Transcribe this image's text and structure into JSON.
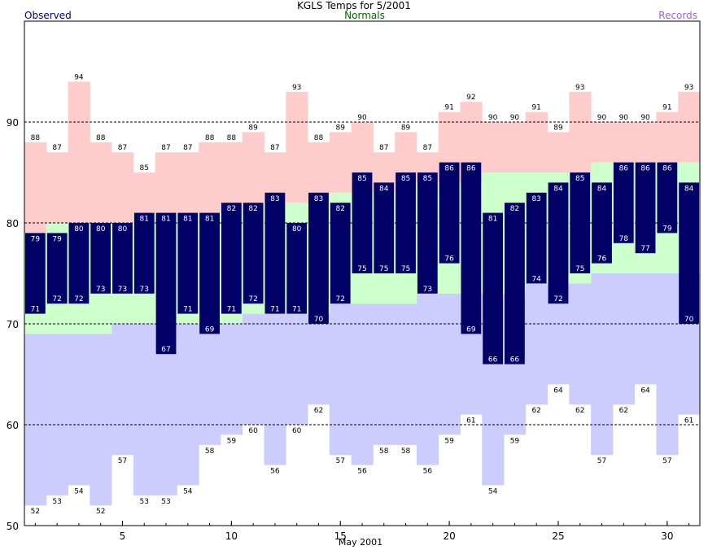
{
  "colors": {
    "observed": "#000066",
    "normals": "#006600",
    "records": "#9966cc",
    "record_high_fill": "#ffcccc",
    "record_low_fill": "#ccccff",
    "normal_fill": "#ccffcc",
    "observed_fill": "#000066"
  },
  "legend": {
    "observed": "Observed",
    "normals": "Normals",
    "records": "Records"
  },
  "chart_data": {
    "type": "bar",
    "title": "KGLS Temps for 5/2001",
    "xlabel": "May 2001",
    "ylabel": "",
    "days": [
      1,
      2,
      3,
      4,
      5,
      6,
      7,
      8,
      9,
      10,
      11,
      12,
      13,
      14,
      15,
      16,
      17,
      18,
      19,
      20,
      21,
      22,
      23,
      24,
      25,
      26,
      27,
      28,
      29,
      30,
      31
    ],
    "x_ticks": [
      5,
      10,
      15,
      20,
      25,
      30
    ],
    "y_ticks": [
      50,
      60,
      70,
      80,
      90
    ],
    "ylim": [
      50,
      100
    ],
    "grid_lines": [
      60,
      70,
      80,
      90
    ],
    "grid": true,
    "legend_placement": "top",
    "series": [
      {
        "name": "Observed",
        "role": "observed_high",
        "values": [
          79,
          79,
          80,
          80,
          80,
          81,
          81,
          81,
          81,
          82,
          82,
          83,
          80,
          83,
          82,
          85,
          84,
          85,
          85,
          86,
          86,
          81,
          82,
          83,
          84,
          85,
          84,
          86,
          86,
          86,
          84
        ]
      },
      {
        "name": "Observed",
        "role": "observed_low",
        "values": [
          71,
          72,
          72,
          73,
          73,
          73,
          67,
          71,
          69,
          71,
          72,
          71,
          71,
          70,
          72,
          75,
          75,
          75,
          73,
          76,
          69,
          66,
          66,
          74,
          72,
          75,
          76,
          78,
          77,
          79,
          70
        ]
      },
      {
        "name": "Normals",
        "role": "normal_high",
        "values": [
          79,
          80,
          80,
          80,
          80,
          81,
          81,
          81,
          81,
          81,
          82,
          82,
          82,
          82,
          83,
          83,
          83,
          84,
          84,
          84,
          84,
          85,
          85,
          85,
          85,
          85,
          86,
          86,
          86,
          86,
          86
        ]
      },
      {
        "name": "Normals",
        "role": "normal_low",
        "values": [
          69,
          69,
          69,
          69,
          70,
          70,
          70,
          70,
          70,
          70,
          71,
          71,
          71,
          71,
          72,
          72,
          72,
          72,
          73,
          73,
          73,
          73,
          73,
          74,
          74,
          74,
          75,
          75,
          75,
          75,
          75
        ]
      },
      {
        "name": "Records",
        "role": "record_high",
        "values": [
          88,
          87,
          94,
          88,
          87,
          85,
          87,
          87,
          88,
          88,
          89,
          87,
          93,
          88,
          89,
          90,
          87,
          89,
          87,
          91,
          92,
          90,
          90,
          91,
          89,
          93,
          90,
          90,
          90,
          91,
          93
        ]
      },
      {
        "name": "Records",
        "role": "record_low",
        "values": [
          52,
          53,
          54,
          52,
          57,
          53,
          53,
          54,
          58,
          59,
          60,
          56,
          60,
          62,
          57,
          56,
          58,
          58,
          56,
          59,
          61,
          54,
          59,
          62,
          64,
          62,
          57,
          62,
          64,
          57,
          61
        ]
      }
    ]
  }
}
